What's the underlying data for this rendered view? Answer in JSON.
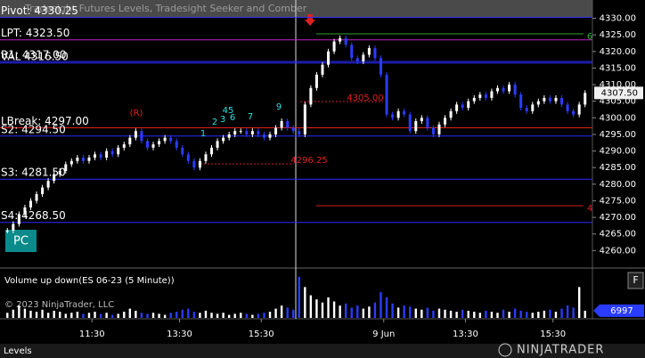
{
  "header": {
    "title": "Tradesight Futures Levels, Tradesight Seeker and Comber"
  },
  "chart_data": {
    "type": "candlestick",
    "color_up": "#ffffff",
    "color_down": "#2a3cff",
    "values": [
      4266,
      4268,
      4271,
      4273,
      4275,
      4277,
      4279,
      4281,
      4283,
      4284,
      4286,
      4287,
      4288,
      4287,
      4288,
      4289,
      4288,
      4290,
      4289,
      4291,
      4292,
      4294,
      4296,
      4293,
      4291,
      4292,
      4293,
      4294,
      4293,
      4291,
      4289,
      4287,
      4285,
      4287,
      4289,
      4291,
      4293,
      4294,
      4295,
      4296,
      4296,
      4295,
      4296,
      4295,
      4294,
      4295,
      4297,
      4299,
      4297,
      4296,
      4295,
      4304,
      4309,
      4313,
      4316,
      4320,
      4323,
      4324,
      4322,
      4318,
      4317,
      4319,
      4321,
      4318,
      4313,
      4301,
      4300,
      4302,
      4301,
      4296,
      4299,
      4300,
      4297,
      4295,
      4298,
      4300,
      4302,
      4304,
      4303,
      4305,
      4306,
      4307,
      4306,
      4308,
      4309,
      4308,
      4310,
      4307,
      4303,
      4302,
      4304,
      4305,
      4306,
      4305,
      4306,
      4304,
      4302,
      4301,
      4304,
      4307.5
    ],
    "xlim": [
      0,
      100
    ],
    "xticks": [
      {
        "value": 15,
        "label": "11:30"
      },
      {
        "value": 30,
        "label": "13:30"
      },
      {
        "value": 44,
        "label": "15:30"
      },
      {
        "value": 65,
        "label": "9 Jun"
      },
      {
        "value": 79,
        "label": "13:30"
      },
      {
        "value": 94,
        "label": "15:30"
      }
    ],
    "ylim": [
      4255,
      4335.5
    ],
    "yticks": [
      {
        "value": 4330,
        "label": "4330.00"
      },
      {
        "value": 4325,
        "label": "4325.00"
      },
      {
        "value": 4320,
        "label": "4320.00"
      },
      {
        "value": 4315,
        "label": "4315.00"
      },
      {
        "value": 4310,
        "label": "4310.00"
      },
      {
        "value": 4305,
        "label": "4305.00"
      },
      {
        "value": 4300,
        "label": "4300.00"
      },
      {
        "value": 4295,
        "label": "4295.00"
      },
      {
        "value": 4290,
        "label": "4290.00"
      },
      {
        "value": 4285,
        "label": "4285.00"
      },
      {
        "value": 4280,
        "label": "4280.00"
      },
      {
        "value": 4275,
        "label": "4275.00"
      },
      {
        "value": 4270,
        "label": "4270.00"
      },
      {
        "value": 4265,
        "label": "4265.00"
      },
      {
        "value": 4260,
        "label": "4260.00"
      }
    ],
    "last_price": {
      "value": 4307.5,
      "label": "4307.50"
    },
    "levels": [
      {
        "label": "Pivot: 4330.25",
        "value": 4330.25,
        "color": "#2a2aff"
      },
      {
        "label": "LPT: 4323.50",
        "value": 4323.5,
        "color": "#c020c0"
      },
      {
        "label": "R1: 4317.00",
        "value": 4317,
        "color": "#2a2aff"
      },
      {
        "label": "VAL 4316.50",
        "value": 4316.5,
        "color": "#2a2aff"
      },
      {
        "label": "LBreak: 4297.00",
        "value": 4297,
        "color": "#e02020"
      },
      {
        "label": "S2: 4294.50",
        "value": 4294.5,
        "color": "#2a2aff"
      },
      {
        "label": "S3: 4281.50",
        "value": 4281.5,
        "color": "#2a2aff"
      },
      {
        "label": "S4: 4268.50",
        "value": 4268.5,
        "color": "#2a2aff"
      }
    ],
    "annotations": [
      "(R)",
      "4305.00",
      "4296.25",
      "6",
      "4",
      "1",
      "2",
      "3",
      "45",
      "6",
      "7",
      "9"
    ],
    "volume": {
      "title": "Volume up down(ES 06-23 (5 Minute))",
      "ylim": [
        0,
        45000
      ],
      "last": 6997,
      "values": [
        5000,
        8000,
        12000,
        9000,
        7000,
        6000,
        8000,
        5000,
        7000,
        6000,
        4000,
        5000,
        6000,
        4000,
        5000,
        6000,
        4000,
        5000,
        3000,
        4000,
        6000,
        9000,
        7000,
        5000,
        4000,
        5000,
        4000,
        3000,
        5000,
        6000,
        8000,
        9000,
        6000,
        5000,
        7000,
        5000,
        4000,
        5000,
        3000,
        4000,
        5000,
        4000,
        3000,
        4000,
        5000,
        6000,
        9000,
        12000,
        10000,
        8000,
        40000,
        30000,
        22000,
        18000,
        15000,
        20000,
        16000,
        12000,
        14000,
        10000,
        12000,
        9000,
        11000,
        15000,
        25000,
        20000,
        14000,
        10000,
        12000,
        11000,
        9000,
        8000,
        10000,
        7000,
        9000,
        8000,
        7000,
        6000,
        8000,
        7000,
        6000,
        5000,
        7000,
        6000,
        5000,
        8000,
        6000,
        9000,
        7000,
        6000,
        5000,
        6000,
        7000,
        8000,
        6000,
        9000,
        12000,
        10000,
        30000,
        6997
      ]
    }
  },
  "ui": {
    "copyright": "© 2023 NinjaTrader, LLC",
    "badge": "PC",
    "panel_button": "F",
    "tab": "Levels",
    "logo": "NINJATRADER"
  }
}
